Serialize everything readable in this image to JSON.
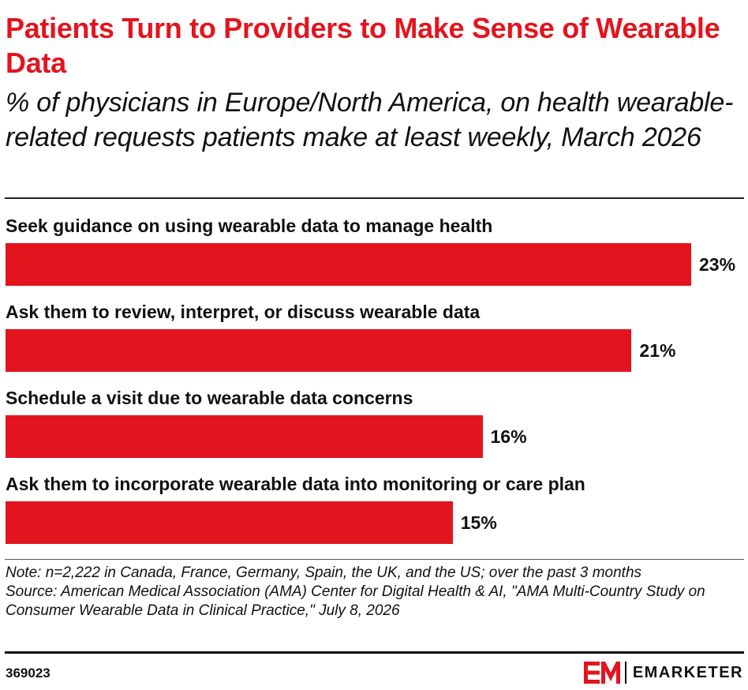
{
  "colors": {
    "accent": "#e3141e",
    "text": "#111111"
  },
  "chart_data": {
    "type": "bar",
    "orientation": "horizontal",
    "title": "Patients Turn to Providers to Make Sense of Wearable Data",
    "subtitle": "% of physicians in Europe/North America, on health wearable-related requests patients make at least weekly, March 2026",
    "categories": [
      "Seek guidance on using wearable data to manage health",
      "Ask them to review, interpret, or discuss wearable data",
      "Schedule a visit due to wearable data concerns",
      "Ask them to incorporate wearable data into monitoring or care plan"
    ],
    "values": [
      23,
      21,
      16,
      15
    ],
    "value_labels": [
      "23%",
      "21%",
      "16%",
      "15%"
    ],
    "unit": "%",
    "grid": false,
    "legend": "none"
  },
  "footer": {
    "note": "Note: n=2,222 in Canada, France, Germany, Spain, the UK, and the US; over the past 3 months",
    "source": "Source: American Medical Association (AMA) Center for Digital Health & AI, \"AMA Multi-Country Study on Consumer Wearable Data in Clinical Practice,\" July 8, 2026",
    "chart_id": "369023",
    "brand": "EMARKETER",
    "logo_icon": "em-logo-icon"
  }
}
